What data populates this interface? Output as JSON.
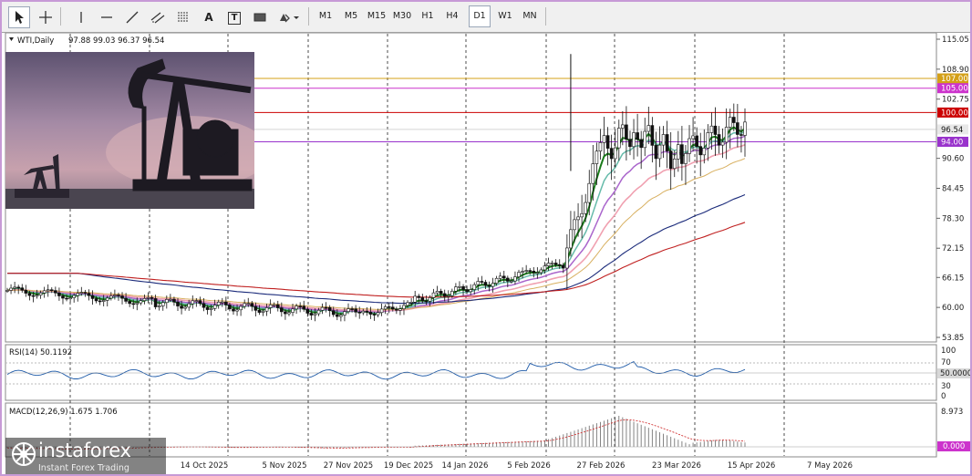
{
  "toolbar": {
    "drawing_tools": [
      {
        "name": "cursor-tool",
        "icon": "cursor-icon"
      },
      {
        "name": "crosshair-tool",
        "icon": "crosshair-icon"
      },
      {
        "name": "vertical-line-tool",
        "icon": "vertical-line-icon"
      },
      {
        "name": "horizontal-line-tool",
        "icon": "horizontal-line-icon"
      },
      {
        "name": "trendline-tool",
        "icon": "trendline-icon"
      },
      {
        "name": "equidistant-channel-tool",
        "icon": "channel-icon"
      },
      {
        "name": "fibonacci-tool",
        "icon": "fibonacci-icon"
      },
      {
        "name": "text-tool",
        "icon": "text-icon",
        "label": "A"
      },
      {
        "name": "text-label-tool",
        "icon": "text-label-icon",
        "label": "T"
      },
      {
        "name": "rectangle-tool",
        "icon": "rectangle-icon"
      },
      {
        "name": "shapes-menu",
        "icon": "shapes-icon"
      }
    ],
    "timeframes": [
      "M1",
      "M5",
      "M15",
      "M30",
      "H1",
      "H4",
      "D1",
      "W1",
      "MN"
    ],
    "active_timeframe": "D1"
  },
  "chart": {
    "symbol_label": "WTI,Daily",
    "ohlc_text": "97.88 99.03 96.37 96.54",
    "price_ticks": [
      "115.05",
      "108.90",
      "102.75",
      "96.54",
      "90.60",
      "84.45",
      "78.30",
      "72.15",
      "66.15",
      "60.00",
      "53.85"
    ],
    "level_tags": [
      {
        "label": "107.00",
        "color": "#d4a017"
      },
      {
        "label": "105.00",
        "color": "#cc33cc"
      },
      {
        "label": "100.00",
        "color": "#cc0000"
      },
      {
        "label": "96.54",
        "color": "#e8e8e8"
      },
      {
        "label": "94.00",
        "color": "#9933cc"
      }
    ],
    "date_labels": [
      "14 Oct 2025",
      "5 Nov 2025",
      "27 Nov 2025",
      "19 Dec 2025",
      "14 Jan 2026",
      "5 Feb 2026",
      "27 Feb 2026",
      "23 Mar 2026",
      "15 Apr 2026",
      "7 May 2026"
    ],
    "colors": {
      "candle": "#111111",
      "ema_fast": "#1a7a1a",
      "ema_teal": "#66bbaa",
      "ema_violet": "#aa66cc",
      "ema_pink": "#f0a0b0",
      "ema_tan": "#d8b060",
      "ema_navy": "#1a2a7a",
      "ema_red": "#c02020"
    }
  },
  "rsi": {
    "label": "RSI(14) 50.1192",
    "ticks": [
      "100",
      "70",
      "30",
      "0"
    ],
    "current_tag": "50.0000"
  },
  "macd": {
    "label": "MACD(12,26,9) 1.675 1.706",
    "ticks": [
      "8.973"
    ],
    "zero_tag": "0.000"
  },
  "branding": {
    "logo_text": "instaforex",
    "logo_subtext": "Instant Forex Trading"
  }
}
